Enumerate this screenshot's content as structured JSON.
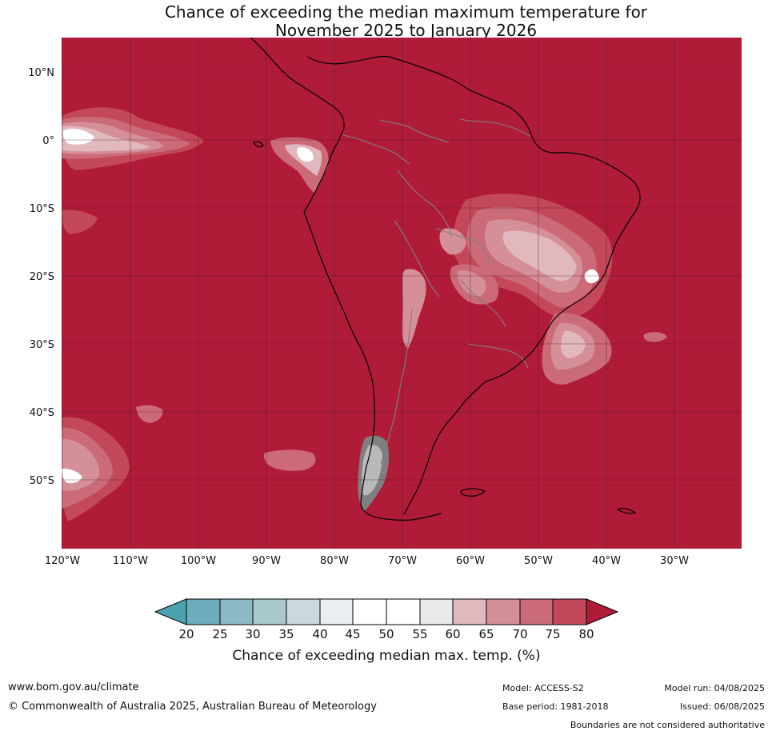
{
  "title": {
    "line1": "Chance of exceeding the median maximum temperature for",
    "line2": "November 2025 to January 2026"
  },
  "map": {
    "latitude_labels": [
      "10°N",
      "0°",
      "10°S",
      "20°S",
      "30°S",
      "40°S",
      "50°S"
    ],
    "longitude_labels": [
      "120°W",
      "110°W",
      "100°W",
      "90°W",
      "80°W",
      "70°W",
      "60°W",
      "50°W",
      "40°W",
      "30°W"
    ],
    "background_probability_band": "80+",
    "colors": {
      "high": "#b01c38",
      "c75": "#c3485a",
      "c70": "#cb6b78",
      "c65": "#d58f98",
      "c60": "#e1b8be",
      "c55": "#e9e9e9",
      "c45": "#ffffff",
      "coast": "#000000",
      "borders": "#7f7f7f"
    }
  },
  "legend": {
    "ticks": [
      "20",
      "25",
      "30",
      "35",
      "40",
      "45",
      "50",
      "55",
      "60",
      "65",
      "70",
      "75",
      "80"
    ],
    "colors": [
      "#4ba3b2",
      "#6badbc",
      "#8cb9c6",
      "#a9c8ce",
      "#cad9dd",
      "#e9eff1",
      "#ffffff",
      "#ffffff",
      "#e9e9e9",
      "#e1b8be",
      "#d58f98",
      "#cb6b78",
      "#c3485a",
      "#b01c38"
    ],
    "label": "Chance of exceeding median max. temp. (%)"
  },
  "footer": {
    "url": "www.bom.gov.au/climate",
    "copyright": "© Commonwealth of Australia 2025, Australian Bureau of Meteorology",
    "model": "Model: ACCESS-S2",
    "base_period": "Base period: 1981-2018",
    "model_run": "Model run: 04/08/2025",
    "issued": "Issued: 06/08/2025",
    "disclaimer": "Boundaries are not considered authoritative"
  }
}
